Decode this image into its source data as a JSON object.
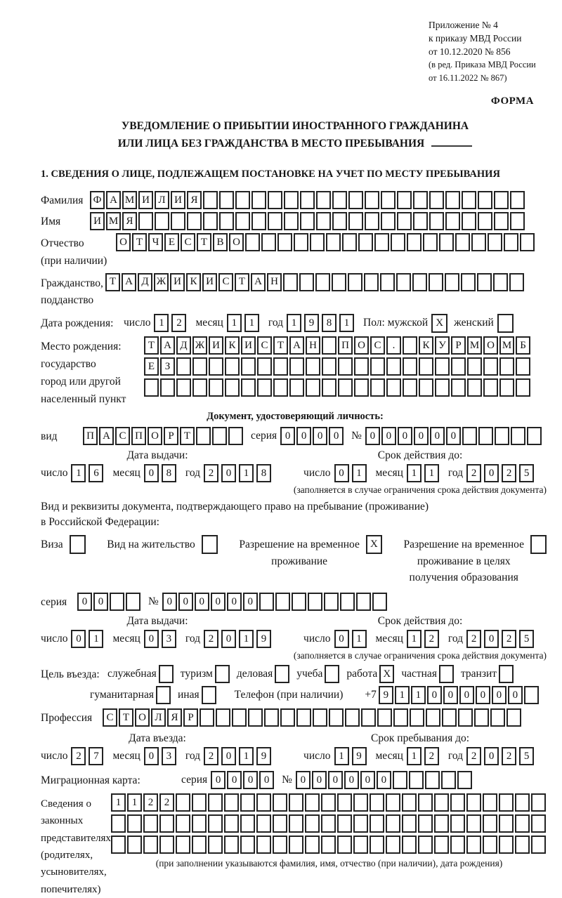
{
  "doc": {
    "appendix": [
      "Приложение № 4",
      "к приказу МВД России",
      "от 10.12.2020 № 856"
    ],
    "amendment": [
      "(в ред. Приказа МВД России",
      "от 16.11.2022 № 867)"
    ],
    "form_word": "ФОРМА",
    "title1": "УВЕДОМЛЕНИЕ О ПРИБЫТИИ ИНОСТРАННОГО ГРАЖДАНИНА",
    "title2": "ИЛИ ЛИЦА БЕЗ ГРАЖДАНСТВА В МЕСТО ПРЕБЫВАНИЯ",
    "section1": "1. СВЕДЕНИЯ О ЛИЦЕ, ПОДЛЕЖАЩЕМ ПОСТАНОВКЕ НА УЧЕТ ПО МЕСТУ ПРЕБЫВАНИЯ"
  },
  "person": {
    "surname": {
      "label": "Фамилия",
      "value": "ФАМИЛИЯ",
      "cells": 27
    },
    "firstname": {
      "label": "Имя",
      "value": "ИМЯ",
      "cells": 27
    },
    "patronymic": {
      "label": "Отчество",
      "sublabel": "(при наличии)",
      "value": "ОТЧЕСТВО",
      "cells": 26
    },
    "citizenship": {
      "label": "Гражданство,",
      "sublabel": "подданство",
      "value": "ТАДЖИКИСТАН",
      "cells": 26
    },
    "birth": {
      "label": "Дата рождения:",
      "day_label": "число",
      "day": {
        "value": "12",
        "cells": 2
      },
      "month_label": "месяц",
      "month": {
        "value": "11",
        "cells": 2
      },
      "year_label": "год",
      "year": {
        "value": "1981",
        "cells": 4
      }
    },
    "sex": {
      "male_label": "Пол: мужской",
      "male_mark": "X",
      "female_label": "женский",
      "female_mark": ""
    },
    "birthplace": {
      "labels": [
        "Место рождения:",
        "государство",
        "город или другой",
        "населенный пункт"
      ],
      "row1": {
        "value": "ТАДЖИКИСТАН ПОС. КУРМОМБ",
        "cells": 24
      },
      "row2": {
        "value": "ЕЗ",
        "cells": 24
      },
      "row3": {
        "value": "",
        "cells": 24
      }
    }
  },
  "identity": {
    "header": "Документ, удостоверяющий личность:",
    "kind_label": "вид",
    "kind": {
      "value": "ПАСПОРТ",
      "cells": 10
    },
    "series_label": "серия",
    "series": {
      "value": "0000",
      "cells": 4
    },
    "number_label": "№",
    "number": {
      "value": "000000",
      "cells": 11
    },
    "issue_header": "Дата выдачи:",
    "issue": {
      "day_label": "число",
      "day": {
        "value": "16",
        "cells": 2
      },
      "month_label": "месяц",
      "month": {
        "value": "08",
        "cells": 2
      },
      "year_label": "год",
      "year": {
        "value": "2018",
        "cells": 4
      }
    },
    "valid_header": "Срок действия до:",
    "valid": {
      "day_label": "число",
      "day": {
        "value": "01",
        "cells": 2
      },
      "month_label": "месяц",
      "month": {
        "value": "11",
        "cells": 2
      },
      "year_label": "год",
      "year": {
        "value": "2025",
        "cells": 4
      }
    },
    "note": "(заполняется в случае ограничения срока действия документа)"
  },
  "residence": {
    "intro1": "Вид и реквизиты документа, подтверждающего право на пребывание (проживание)",
    "intro2": "в Российской Федерации:",
    "visa_label": "Виза",
    "visa_mark": "",
    "permit_label": "Вид на жительство",
    "permit_mark": "",
    "rvp_label1": "Разрешение на временное",
    "rvp_label2": "проживание",
    "rvp_mark": "X",
    "rvpo_label1": "Разрешение на временное",
    "rvpo_label2": "проживание в целях",
    "rvpo_label3": "получения образования",
    "rvpo_mark": "",
    "series_label": "серия",
    "series": {
      "value": "00",
      "cells": 4
    },
    "number_label": "№",
    "number": {
      "value": "000000",
      "cells": 14
    },
    "issue_header": "Дата выдачи:",
    "issue": {
      "day_label": "число",
      "day": {
        "value": "01",
        "cells": 2
      },
      "month_label": "месяц",
      "month": {
        "value": "03",
        "cells": 2
      },
      "year_label": "год",
      "year": {
        "value": "2019",
        "cells": 4
      }
    },
    "valid_header": "Срок действия до:",
    "valid": {
      "day_label": "число",
      "day": {
        "value": "01",
        "cells": 2
      },
      "month_label": "месяц",
      "month": {
        "value": "12",
        "cells": 2
      },
      "year_label": "год",
      "year": {
        "value": "2025",
        "cells": 4
      }
    },
    "note": "(заполняется в случае ограничения срока действия документа)"
  },
  "visit": {
    "purpose_label": "Цель въезда:",
    "purposes": [
      {
        "label": "служебная",
        "mark": ""
      },
      {
        "label": "туризм",
        "mark": ""
      },
      {
        "label": "деловая",
        "mark": ""
      },
      {
        "label": "учеба",
        "mark": ""
      },
      {
        "label": "работа",
        "mark": "X"
      },
      {
        "label": "частная",
        "mark": ""
      },
      {
        "label": "транзит",
        "mark": ""
      }
    ],
    "purposes2": [
      {
        "label": "гуманитарная",
        "mark": ""
      },
      {
        "label": "иная",
        "mark": ""
      }
    ],
    "phone_label": "Телефон (при наличии)",
    "phone_prefix": "+7",
    "phone": {
      "value": "911000000",
      "cells": 10
    },
    "profession_label": "Профессия",
    "profession": {
      "value": "СТОЛЯР",
      "cells": 26
    },
    "entry_header": "Дата въезда:",
    "entry": {
      "day_label": "число",
      "day": {
        "value": "27",
        "cells": 2
      },
      "month_label": "месяц",
      "month": {
        "value": "03",
        "cells": 2
      },
      "year_label": "год",
      "year": {
        "value": "2019",
        "cells": 4
      }
    },
    "stay_header": "Срок пребывания до:",
    "stay": {
      "day_label": "число",
      "day": {
        "value": "19",
        "cells": 2
      },
      "month_label": "месяц",
      "month": {
        "value": "12",
        "cells": 2
      },
      "year_label": "год",
      "year": {
        "value": "2025",
        "cells": 4
      }
    },
    "migration_label": "Миграционная карта:",
    "mc_series_label": "серия",
    "mc_series": {
      "value": "0000",
      "cells": 4
    },
    "mc_number_label": "№",
    "mc_number": {
      "value": "000000",
      "cells": 11
    }
  },
  "reps": {
    "labels": [
      "Сведения о",
      "законных",
      "представителях",
      "(родителях,",
      "усыновителях,",
      "попечителях)"
    ],
    "row1": {
      "value": "1122",
      "cells": 27
    },
    "row2": {
      "value": "",
      "cells": 27
    },
    "row3": {
      "value": "",
      "cells": 27
    },
    "note": "(при заполнении указываются фамилия, имя, отчество (при наличии), дата рождения)"
  }
}
